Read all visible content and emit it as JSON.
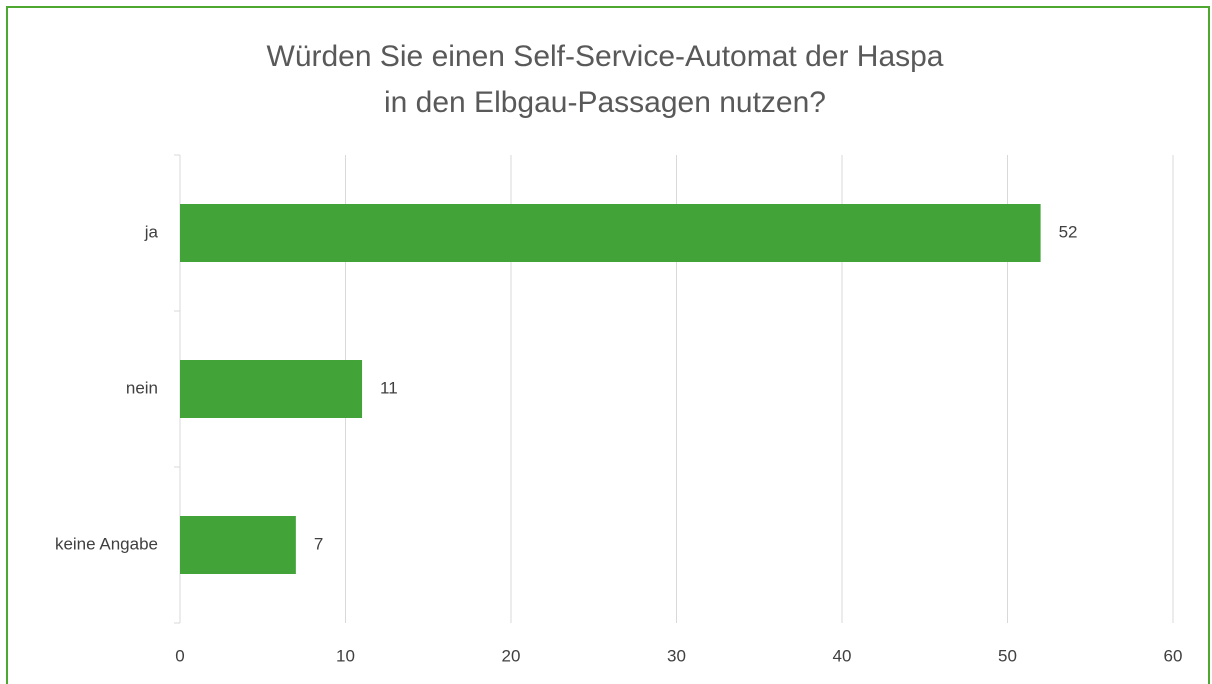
{
  "chart_data": {
    "type": "bar",
    "orientation": "horizontal",
    "title": "Würden Sie einen Self-Service-Automat der Haspa in den Elbgau-Passagen nutzen?",
    "categories": [
      "ja",
      "nein",
      "keine Angabe"
    ],
    "values": [
      52,
      11,
      7
    ],
    "color": "#41a338",
    "xlim": [
      0,
      60
    ],
    "xticks": [
      0,
      10,
      20,
      30,
      40,
      50,
      60
    ],
    "grid": true
  }
}
